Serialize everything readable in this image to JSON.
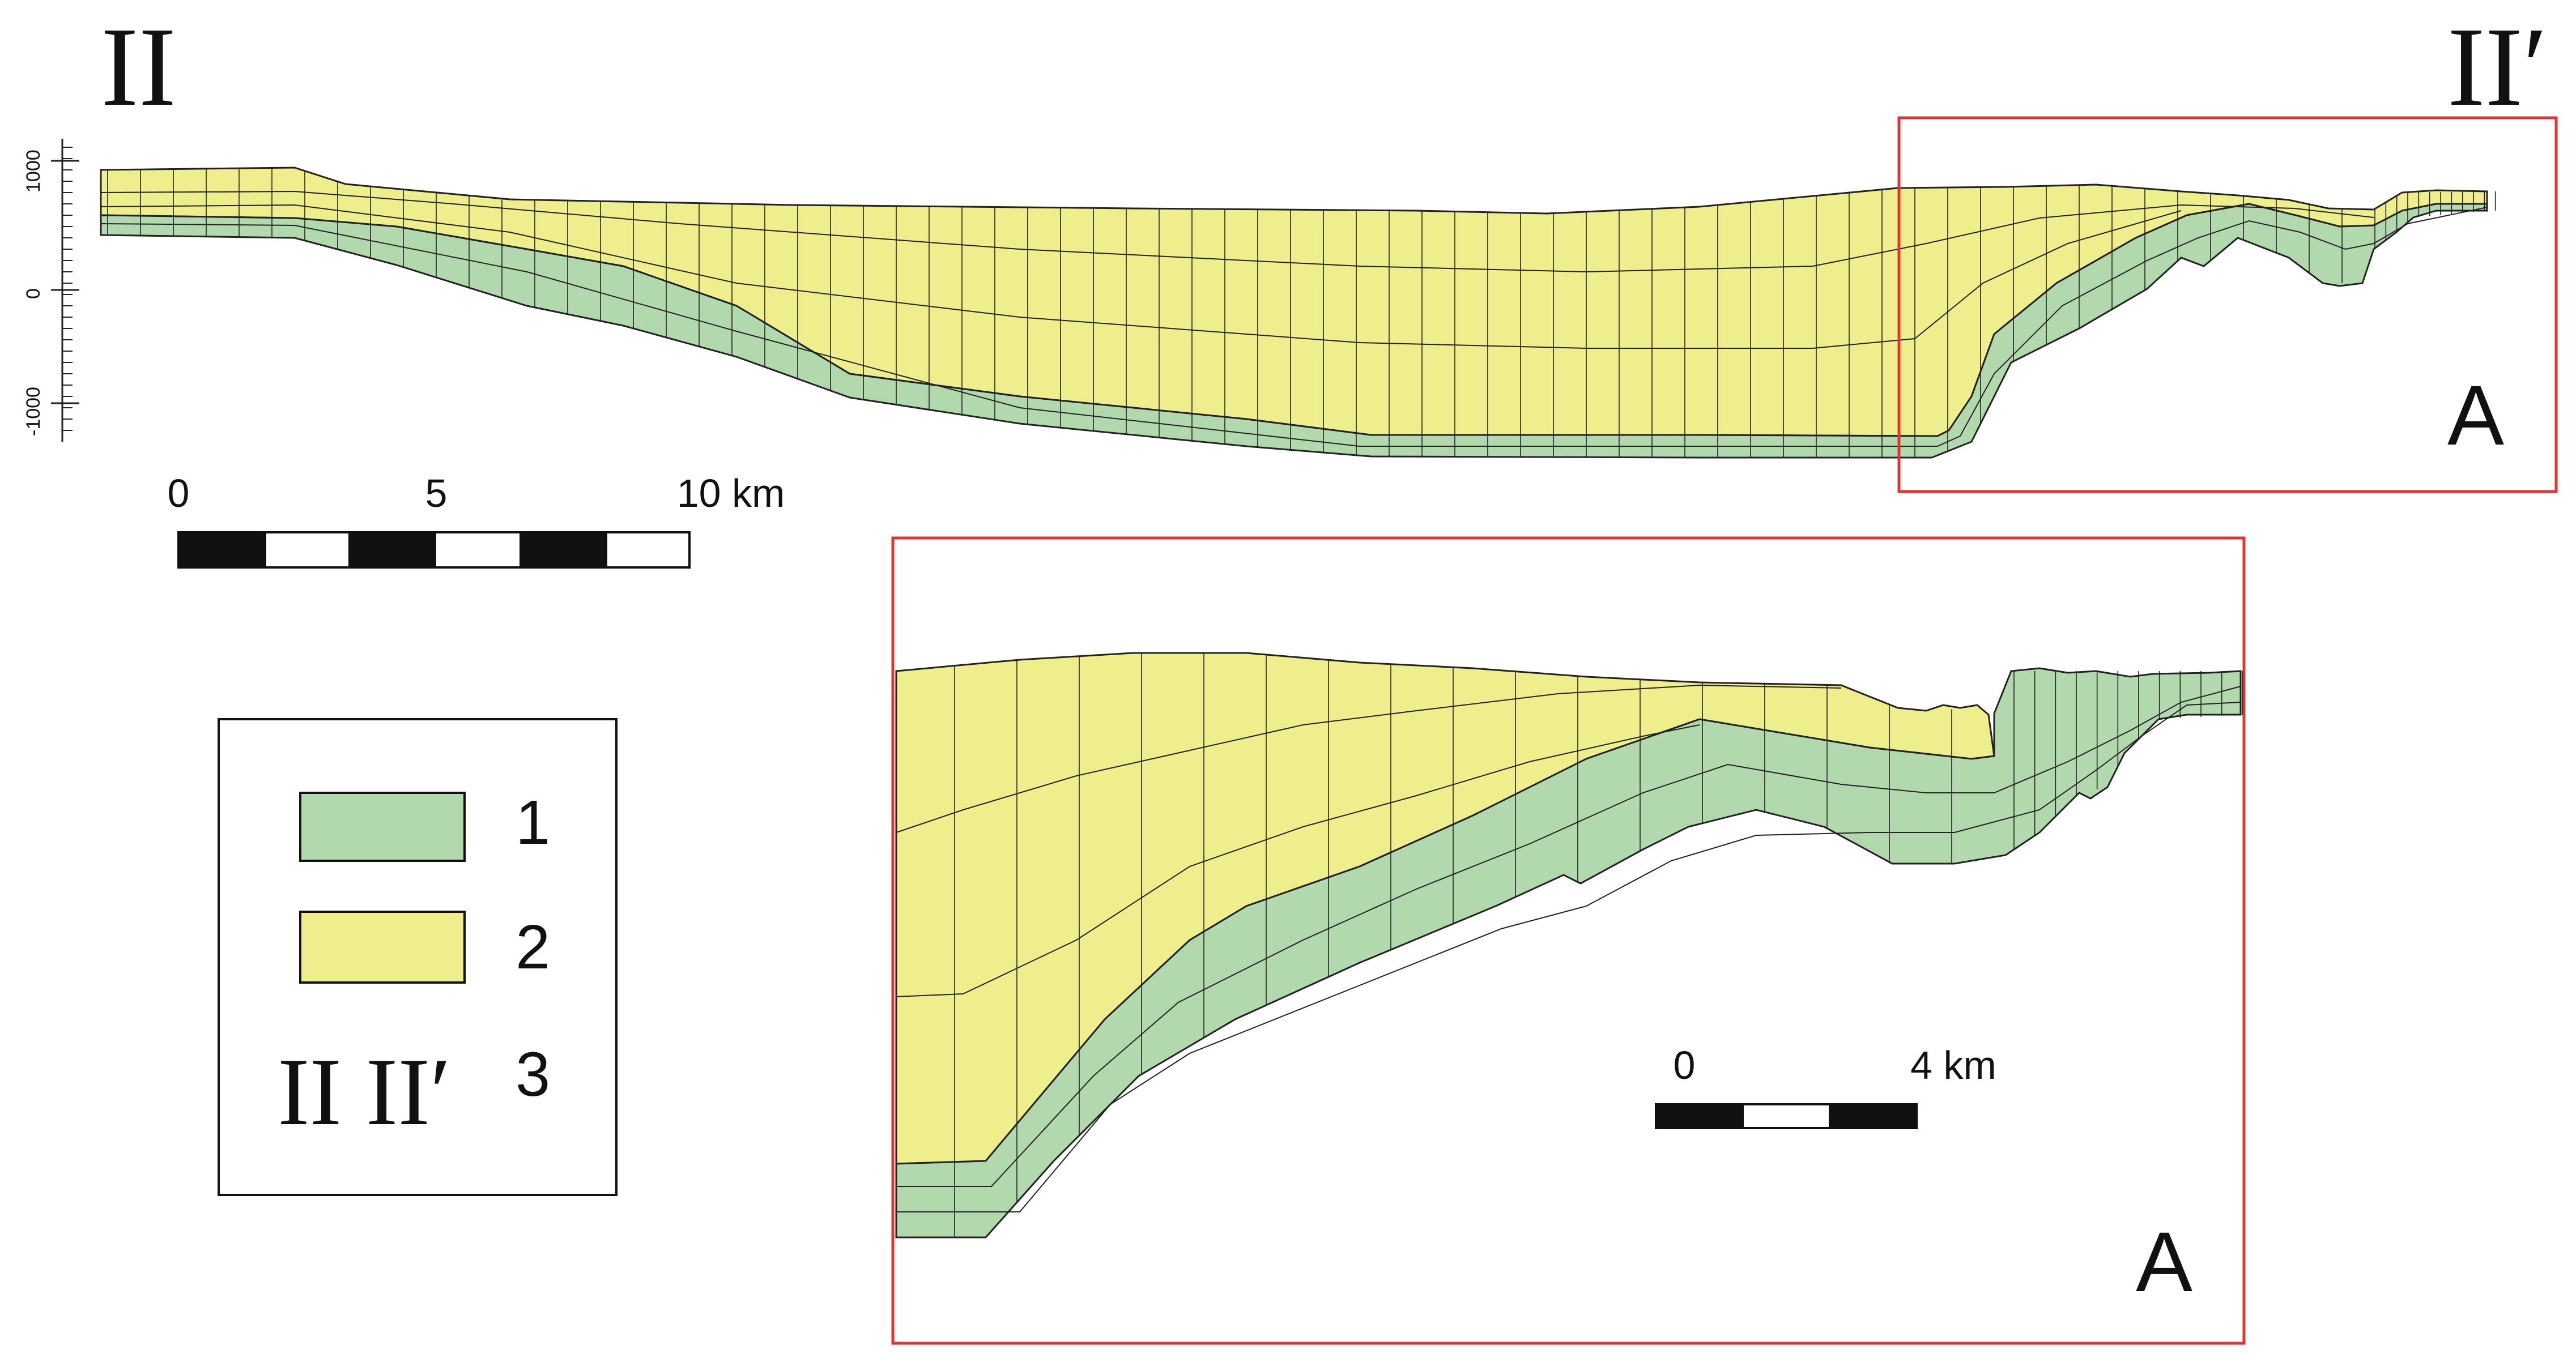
{
  "section": {
    "start_label": "II",
    "end_label": "II′",
    "depth_ticks": [
      "1000",
      "0",
      "-1000"
    ],
    "scale_bar": {
      "labels": [
        "0",
        "5",
        "10 km"
      ]
    },
    "detail_marker": "A"
  },
  "inset": {
    "label": "A",
    "scale_bar": {
      "labels": [
        "0",
        "4 km"
      ]
    }
  },
  "legend": {
    "items": [
      {
        "number": "1",
        "swatch_color": "#b2d8ae"
      },
      {
        "number": "2",
        "swatch_color": "#eeee8c"
      },
      {
        "number": "3",
        "symbol": "II II′"
      }
    ]
  },
  "colors": {
    "unit_1": "#b2d8ae",
    "unit_2": "#eeee8c",
    "frame_red": "#e3322f",
    "lines": "#222222"
  }
}
